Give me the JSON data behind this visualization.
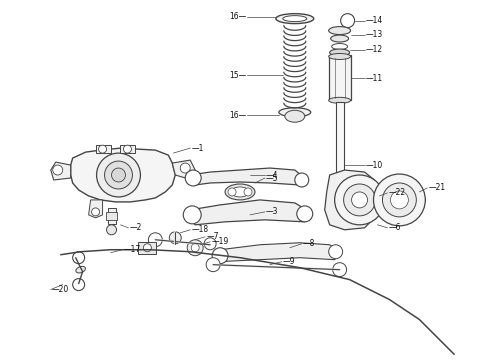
{
  "background_color": "#ffffff",
  "line_color": "#444444",
  "label_color": "#111111",
  "fig_width": 4.9,
  "fig_height": 3.6,
  "dpi": 100
}
